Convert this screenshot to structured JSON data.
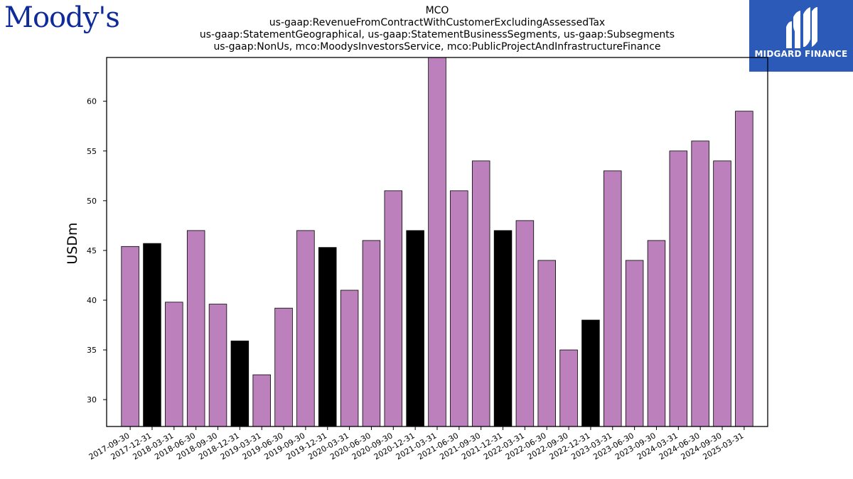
{
  "brand_left": {
    "name": "Moody's",
    "color": "#0f2b9b"
  },
  "brand_right": {
    "name": "MIDGARD FINANCE",
    "bg_color": "#2b5ab8",
    "text_color": "#ffffff"
  },
  "colors": {
    "q4_bar": "#000000",
    "other_bar": "#bc80bd",
    "edge": "#000000"
  },
  "chart_data": {
    "type": "bar",
    "title_lines": [
      "MCO",
      "us-gaap:RevenueFromContractWithCustomerExcludingAssessedTax",
      "us-gaap:StatementGeographical, us-gaap:StatementBusinessSegments, us-gaap:Subsegments",
      "us-gaap:NonUs, mco:MoodysInvestorsService, mco:PublicProjectAndInfrastructureFinance"
    ],
    "xlabel": "",
    "ylabel": "USDm",
    "ylim": [
      27.3,
      64.4
    ],
    "yticks": [
      30,
      35,
      40,
      45,
      50,
      55,
      60
    ],
    "grid": false,
    "categories": [
      "2017-09-30",
      "2017-12-31",
      "2018-03-31",
      "2018-06-30",
      "2018-09-30",
      "2018-12-31",
      "2019-03-31",
      "2019-06-30",
      "2019-09-30",
      "2019-12-31",
      "2020-03-31",
      "2020-06-30",
      "2020-09-30",
      "2020-12-31",
      "2021-03-31",
      "2021-06-30",
      "2021-09-30",
      "2021-12-31",
      "2022-03-31",
      "2022-06-30",
      "2022-09-30",
      "2022-12-31",
      "2023-03-31",
      "2023-06-30",
      "2023-09-30",
      "2024-03-31",
      "2024-06-30",
      "2024-09-30",
      "2025-03-31"
    ],
    "values": [
      45.4,
      45.7,
      39.8,
      47,
      39.6,
      35.9,
      32.5,
      39.2,
      47,
      45.3,
      41,
      46,
      51,
      47,
      64.4,
      51,
      54,
      47,
      48,
      44,
      35,
      38,
      53,
      44,
      46,
      55,
      56,
      54,
      59
    ]
  }
}
